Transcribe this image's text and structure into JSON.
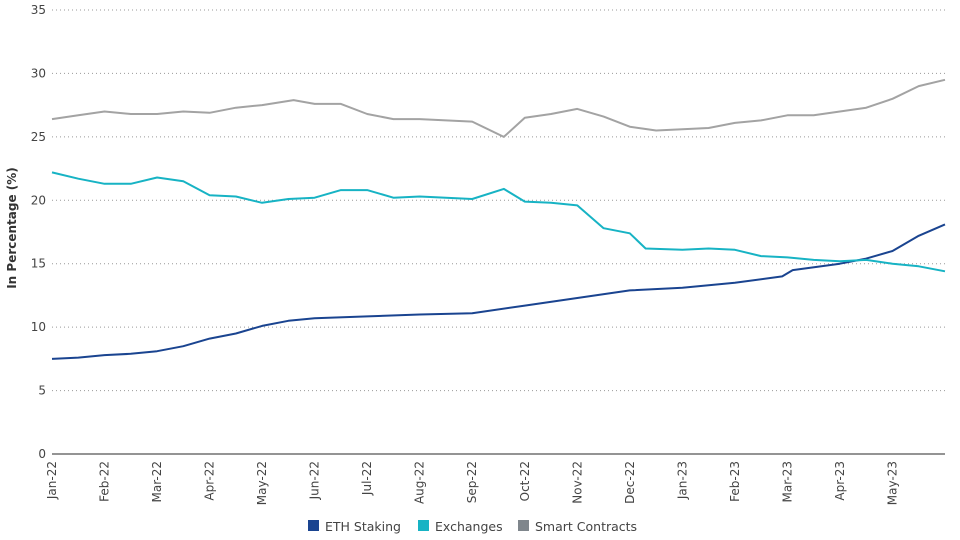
{
  "chart_data": {
    "type": "line",
    "title": "",
    "xlabel": "",
    "ylabel": "In Percentage (%)",
    "ylim": [
      0,
      35
    ],
    "yticks": [
      0,
      5,
      10,
      15,
      20,
      25,
      30,
      35
    ],
    "grid": "horizontal dotted",
    "legend_position": "bottom-center",
    "x_unit": "months since Jan-22",
    "xlim": [
      0,
      17
    ],
    "xtick_labels": [
      "Jan-22",
      "Feb-22",
      "Mar-22",
      "Apr-22",
      "May-22",
      "Jun-22",
      "Jul-22",
      "Aug-22",
      "Sep-22",
      "Oct-22",
      "Nov-22",
      "Dec-22",
      "Jan-23",
      "Feb-23",
      "Mar-23",
      "Apr-23",
      "May-23"
    ],
    "series": [
      {
        "name": "ETH Staking",
        "color": "#1a4490",
        "x": [
          0,
          0.5,
          1,
          1.5,
          2,
          2.5,
          3,
          3.5,
          4,
          4.5,
          5,
          6,
          7,
          8,
          9,
          10,
          11,
          12,
          13,
          13.9,
          14.1,
          15,
          15.5,
          16,
          16.5,
          17
        ],
        "y": [
          7.5,
          7.6,
          7.8,
          7.9,
          8.1,
          8.5,
          9.1,
          9.5,
          10.1,
          10.5,
          10.7,
          10.85,
          11.0,
          11.1,
          11.7,
          12.3,
          12.9,
          13.1,
          13.5,
          14.0,
          14.5,
          15.0,
          15.4,
          16.0,
          17.2,
          18.1
        ]
      },
      {
        "name": "Exchanges",
        "color": "#17b3c4",
        "x": [
          0,
          0.5,
          1,
          1.5,
          2,
          2.5,
          3,
          3.5,
          4,
          4.5,
          5,
          5.5,
          6,
          6.5,
          7,
          7.5,
          8,
          8.6,
          9,
          9.5,
          10,
          10.5,
          11,
          11.3,
          12,
          12.5,
          13,
          13.5,
          14,
          14.5,
          15,
          15.5,
          16,
          16.5,
          17
        ],
        "y": [
          22.2,
          21.7,
          21.3,
          21.3,
          21.8,
          21.5,
          20.4,
          20.3,
          19.8,
          20.1,
          20.2,
          20.8,
          20.8,
          20.2,
          20.3,
          20.2,
          20.1,
          20.9,
          19.9,
          19.8,
          19.6,
          17.8,
          17.4,
          16.2,
          16.1,
          16.2,
          16.1,
          15.6,
          15.5,
          15.3,
          15.2,
          15.3,
          15.0,
          14.8,
          14.4
        ]
      },
      {
        "name": "Smart Contracts",
        "color": "#a3a3a3",
        "x": [
          0,
          0.5,
          1,
          1.5,
          2,
          2.5,
          3,
          3.5,
          4,
          4.6,
          5,
          5.5,
          6,
          6.5,
          7,
          7.5,
          8,
          8.6,
          9,
          9.5,
          10,
          10.5,
          11,
          11.5,
          12,
          12.5,
          13,
          13.5,
          14,
          14.5,
          15,
          15.5,
          16,
          16.5,
          17
        ],
        "y": [
          26.4,
          26.7,
          27.0,
          26.8,
          26.8,
          27.0,
          26.9,
          27.3,
          27.5,
          27.9,
          27.6,
          27.6,
          26.8,
          26.4,
          26.4,
          26.3,
          26.2,
          25.0,
          26.5,
          26.8,
          27.2,
          26.6,
          25.8,
          25.5,
          25.6,
          25.7,
          26.1,
          26.3,
          26.7,
          26.7,
          27.0,
          27.3,
          28.0,
          29.0,
          29.5
        ]
      }
    ]
  }
}
